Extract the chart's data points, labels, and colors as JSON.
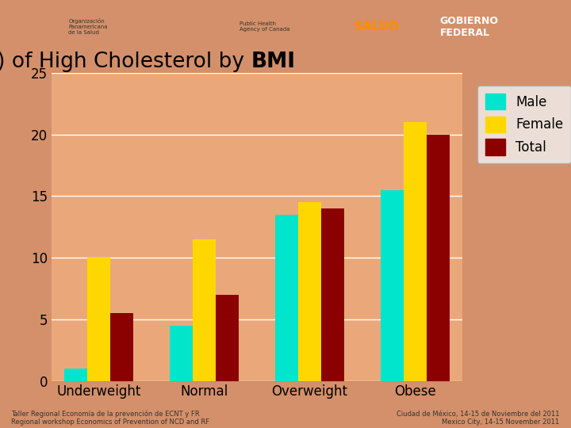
{
  "title_part1": "Prevalence(%) of High Cholesterol by ",
  "title_part2": "BMI",
  "categories": [
    "Underweight",
    "Normal",
    "Overweight",
    "Obese"
  ],
  "male": [
    1.0,
    4.5,
    13.5,
    15.5
  ],
  "female": [
    10.0,
    11.5,
    14.5,
    21.0
  ],
  "total": [
    5.5,
    7.0,
    14.0,
    20.0
  ],
  "male_color": "#00E5CC",
  "female_color": "#FFD700",
  "total_color": "#8B0000",
  "ylim": [
    0,
    25
  ],
  "yticks": [
    0,
    5,
    10,
    15,
    20,
    25
  ],
  "bar_width": 0.22,
  "title_fontsize": 19,
  "tick_fontsize": 12,
  "legend_fontsize": 12,
  "footer_left": "Taller Regional Economía de la prevención de ECNT y FR\nRegional workshop Economics of Prevention of NCD and RF",
  "footer_right": "Ciudad de México, 14-15 de Noviembre del 2011\nMexico City, 14-15 November 2011",
  "bg_color": "#D4906A",
  "plot_area_color": "#EAA87A",
  "header_color": "#B0B0B0",
  "grid_color": "#FFFFFF",
  "legend_face": "#F2F2F2",
  "legend_edge": "#AAAAAA"
}
